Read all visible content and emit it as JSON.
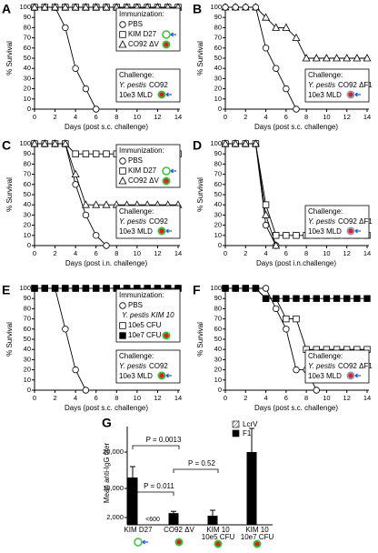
{
  "chart_data": [
    {
      "type": "line",
      "panel_label": "A",
      "xlabel": "Days (post s.c. challenge)",
      "ylabel": "% Survival",
      "x": [
        0,
        1,
        2,
        3,
        4,
        5,
        6,
        7,
        8,
        9,
        10,
        11,
        12,
        13,
        14
      ],
      "xlim": [
        0,
        14
      ],
      "xticks": [
        0,
        2,
        4,
        6,
        8,
        10,
        12,
        14
      ],
      "ylim": [
        0,
        100
      ],
      "yticks": [
        0,
        10,
        20,
        30,
        40,
        50,
        60,
        70,
        80,
        90,
        100
      ],
      "legend_title": "Immunization:",
      "series": [
        {
          "name": "PBS",
          "marker": "circle",
          "color": "#000000",
          "values": [
            100,
            100,
            100,
            80,
            40,
            20,
            0,
            null,
            null,
            null,
            null,
            null,
            null,
            null,
            null
          ]
        },
        {
          "name": "KIM D27",
          "marker": "square",
          "color": "#000000",
          "values": [
            100,
            100,
            100,
            100,
            100,
            100,
            100,
            100,
            100,
            100,
            100,
            100,
            100,
            100,
            100
          ]
        },
        {
          "name": "CO92 ΔV",
          "marker": "triangle",
          "color": "#000000",
          "values": [
            100,
            100,
            100,
            100,
            100,
            100,
            100,
            100,
            100,
            100,
            100,
            100,
            100,
            100,
            100
          ]
        }
      ],
      "challenge": {
        "title": "Challenge:",
        "species": "Y. pestis",
        "strain": "CO92",
        "dose": "10e3 MLD"
      }
    },
    {
      "type": "line",
      "panel_label": "B",
      "xlabel": "Days (post s.c. challenge)",
      "ylabel": "% Survival",
      "x": [
        0,
        1,
        2,
        3,
        4,
        5,
        6,
        7,
        8,
        9,
        10,
        11,
        12,
        13,
        14
      ],
      "xlim": [
        0,
        14
      ],
      "xticks": [
        0,
        2,
        4,
        6,
        8,
        10,
        12,
        14
      ],
      "ylim": [
        0,
        100
      ],
      "yticks": [
        0,
        10,
        20,
        30,
        40,
        50,
        60,
        70,
        80,
        90,
        100
      ],
      "series": [
        {
          "marker": "triangle",
          "color": "#000000",
          "values": [
            100,
            100,
            100,
            100,
            90,
            80,
            80,
            70,
            50,
            50,
            50,
            50,
            50,
            50,
            50
          ]
        },
        {
          "marker": "circle",
          "color": "#000000",
          "values": [
            100,
            100,
            100,
            100,
            60,
            40,
            20,
            0,
            null,
            null,
            null,
            null,
            null,
            null,
            null
          ]
        }
      ],
      "challenge": {
        "title": "Challenge:",
        "species": "Y. pestis",
        "strain": "CO92 ΔF1",
        "dose": "10e3 MLD"
      }
    },
    {
      "type": "line",
      "panel_label": "C",
      "xlabel": "Days (post i.n. challenge)",
      "ylabel": "% Survival",
      "x": [
        0,
        1,
        2,
        3,
        4,
        5,
        6,
        7,
        8,
        9,
        10,
        11,
        12,
        13,
        14
      ],
      "xlim": [
        0,
        14
      ],
      "xticks": [
        0,
        2,
        4,
        6,
        8,
        10,
        12,
        14
      ],
      "ylim": [
        0,
        100
      ],
      "yticks": [
        0,
        10,
        20,
        30,
        40,
        50,
        60,
        70,
        80,
        90,
        100
      ],
      "legend_title": "Immunization:",
      "series": [
        {
          "name": "PBS",
          "marker": "circle",
          "color": "#000000",
          "values": [
            100,
            100,
            100,
            100,
            60,
            30,
            10,
            0,
            null,
            null,
            null,
            null,
            null,
            null,
            null
          ]
        },
        {
          "name": "KIM D27",
          "marker": "square",
          "color": "#000000",
          "values": [
            100,
            100,
            100,
            100,
            90,
            90,
            90,
            90,
            90,
            90,
            90,
            90,
            90,
            90,
            90
          ]
        },
        {
          "name": "CO92 ΔV",
          "marker": "triangle",
          "color": "#000000",
          "values": [
            100,
            100,
            100,
            100,
            70,
            40,
            40,
            40,
            40,
            40,
            40,
            40,
            40,
            40,
            40
          ]
        }
      ],
      "challenge": {
        "title": "Challenge:",
        "species": "Y. pestis",
        "strain": "CO92",
        "dose": "10e3 MLD"
      }
    },
    {
      "type": "line",
      "panel_label": "D",
      "xlabel": "Days (post i.n.challenge)",
      "ylabel": "% Survival",
      "x": [
        0,
        1,
        2,
        3,
        4,
        5,
        6,
        7,
        8,
        9,
        10,
        11,
        12,
        13,
        14
      ],
      "xlim": [
        0,
        14
      ],
      "xticks": [
        0,
        2,
        4,
        6,
        8,
        10,
        12,
        14
      ],
      "ylim": [
        0,
        100
      ],
      "yticks": [
        0,
        10,
        20,
        30,
        40,
        50,
        60,
        70,
        80,
        90,
        100
      ],
      "series": [
        {
          "marker": "circle",
          "color": "#000000",
          "values": [
            100,
            100,
            100,
            100,
            20,
            0,
            null,
            null,
            null,
            null,
            null,
            null,
            null,
            null,
            null
          ]
        },
        {
          "marker": "square",
          "color": "#000000",
          "values": [
            100,
            100,
            100,
            100,
            40,
            10,
            10,
            10,
            10,
            10,
            10,
            10,
            10,
            10,
            10
          ]
        },
        {
          "marker": "triangle",
          "color": "#000000",
          "values": [
            100,
            100,
            100,
            100,
            30,
            0,
            null,
            null,
            null,
            null,
            null,
            null,
            null,
            null,
            null
          ]
        }
      ],
      "challenge": {
        "title": "Challenge:",
        "species": "Y. pestis",
        "strain": "CO92 ΔF1",
        "dose": "10e3 MLD"
      }
    },
    {
      "type": "line",
      "panel_label": "E",
      "xlabel": "Days (post s.c. challenge)",
      "ylabel": "% Survival",
      "x": [
        0,
        1,
        2,
        3,
        4,
        5,
        6,
        7,
        8,
        9,
        10,
        11,
        12,
        13,
        14
      ],
      "xlim": [
        0,
        14
      ],
      "xticks": [
        0,
        2,
        4,
        6,
        8,
        10,
        12,
        14
      ],
      "ylim": [
        0,
        100
      ],
      "yticks": [
        0,
        10,
        20,
        30,
        40,
        50,
        60,
        70,
        80,
        90,
        100
      ],
      "legend_title": "Immunization:",
      "legend_subtitle": "Y. pestis KIM 10",
      "series": [
        {
          "name": "PBS",
          "marker": "circle",
          "color": "#000000",
          "values": [
            100,
            100,
            100,
            60,
            20,
            0,
            null,
            null,
            null,
            null,
            null,
            null,
            null,
            null,
            null
          ]
        },
        {
          "name": "10e5 CFU",
          "marker": "square",
          "color": "#000000",
          "values": [
            100,
            100,
            100,
            100,
            100,
            100,
            100,
            100,
            100,
            100,
            100,
            100,
            100,
            100,
            100
          ]
        },
        {
          "name": "10e7 CFU",
          "marker": "filled-square",
          "color": "#000000",
          "values": [
            100,
            100,
            100,
            100,
            100,
            100,
            100,
            100,
            100,
            100,
            100,
            100,
            100,
            100,
            100
          ]
        }
      ],
      "challenge": {
        "title": "Challenge:",
        "species": "Y. pestis",
        "strain": "CO92",
        "dose": "10e3 MLD"
      }
    },
    {
      "type": "line",
      "panel_label": "F",
      "xlabel": "Days (post s.c. challenge)",
      "ylabel": "% Survival",
      "x": [
        0,
        1,
        2,
        3,
        4,
        5,
        6,
        7,
        8,
        9,
        10,
        11,
        12,
        13,
        14
      ],
      "xlim": [
        0,
        14
      ],
      "xticks": [
        0,
        2,
        4,
        6,
        8,
        10,
        12,
        14
      ],
      "ylim": [
        0,
        100
      ],
      "yticks": [
        0,
        10,
        20,
        30,
        40,
        50,
        60,
        70,
        80,
        90,
        100
      ],
      "series": [
        {
          "marker": "circle",
          "color": "#000000",
          "values": [
            100,
            100,
            100,
            100,
            100,
            80,
            60,
            20,
            20,
            0,
            null,
            null,
            null,
            null,
            null
          ]
        },
        {
          "marker": "square",
          "color": "#000000",
          "values": [
            100,
            100,
            100,
            100,
            90,
            90,
            70,
            70,
            40,
            40,
            40,
            40,
            40,
            40,
            40
          ]
        },
        {
          "marker": "filled-square",
          "color": "#000000",
          "values": [
            100,
            100,
            100,
            100,
            90,
            90,
            90,
            90,
            90,
            90,
            90,
            90,
            90,
            90,
            90
          ]
        }
      ],
      "challenge": {
        "title": "Challenge:",
        "species": "Y. pestis",
        "strain": "CO92 ΔF1",
        "dose": "10e3 MLD"
      }
    },
    {
      "type": "bar",
      "panel_label": "G",
      "ylabel": "Mean anti-IgG titer",
      "categories": [
        "KIM D27",
        "CO92 ΔV",
        "KIM 10",
        "KIM 10"
      ],
      "category_sublabels": [
        null,
        null,
        "10e5 CFU",
        "10e7 CFU"
      ],
      "ylim": [
        0,
        27000
      ],
      "yticks": [
        {
          "value": 2000,
          "label": "2,000"
        },
        {
          "value": 10000,
          "label": "10,000"
        },
        {
          "value": 20000,
          "label": "20,000"
        }
      ],
      "series": [
        {
          "name": "LcrV",
          "pattern": "hatch",
          "color": "#555555",
          "values": [
            null,
            null,
            null,
            null
          ],
          "errors": [
            null,
            null,
            null,
            null
          ]
        },
        {
          "name": "F1",
          "pattern": "solid",
          "color": "#000000",
          "values": [
            13000,
            3200,
            2500,
            20000
          ],
          "errors": [
            3000,
            500,
            1500,
            6500
          ]
        }
      ],
      "annotations": [
        "P = 0.0013",
        "P = 0.52",
        "P = 0.011",
        "<600"
      ]
    }
  ]
}
